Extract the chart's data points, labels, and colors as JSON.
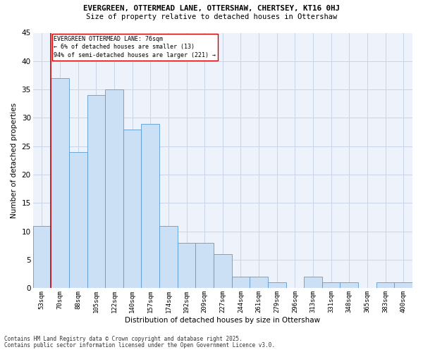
{
  "title": "EVERGREEN, OTTERMEAD LANE, OTTERSHAW, CHERTSEY, KT16 0HJ",
  "subtitle": "Size of property relative to detached houses in Ottershaw",
  "xlabel": "Distribution of detached houses by size in Ottershaw",
  "ylabel": "Number of detached properties",
  "bar_color": "#cce0f5",
  "bar_edge_color": "#5b9bd5",
  "grid_color": "#c8d4e8",
  "bg_color": "#eef2fa",
  "annotation_line_color": "#cc0000",
  "annotation_box_color": "#cc0000",
  "annotation_text": "EVERGREEN OTTERMEAD LANE: 76sqm\n← 6% of detached houses are smaller (13)\n94% of semi-detached houses are larger (221) →",
  "property_line_x": 1,
  "categories": [
    "53sqm",
    "70sqm",
    "88sqm",
    "105sqm",
    "122sqm",
    "140sqm",
    "157sqm",
    "174sqm",
    "192sqm",
    "209sqm",
    "227sqm",
    "244sqm",
    "261sqm",
    "279sqm",
    "296sqm",
    "313sqm",
    "331sqm",
    "348sqm",
    "365sqm",
    "383sqm",
    "400sqm"
  ],
  "values": [
    11,
    37,
    24,
    34,
    35,
    28,
    29,
    11,
    8,
    8,
    6,
    2,
    2,
    1,
    0,
    2,
    1,
    1,
    0,
    1,
    1
  ],
  "ylim": [
    0,
    45
  ],
  "yticks": [
    0,
    5,
    10,
    15,
    20,
    25,
    30,
    35,
    40,
    45
  ],
  "footer_line1": "Contains HM Land Registry data © Crown copyright and database right 2025.",
  "footer_line2": "Contains public sector information licensed under the Open Government Licence v3.0."
}
